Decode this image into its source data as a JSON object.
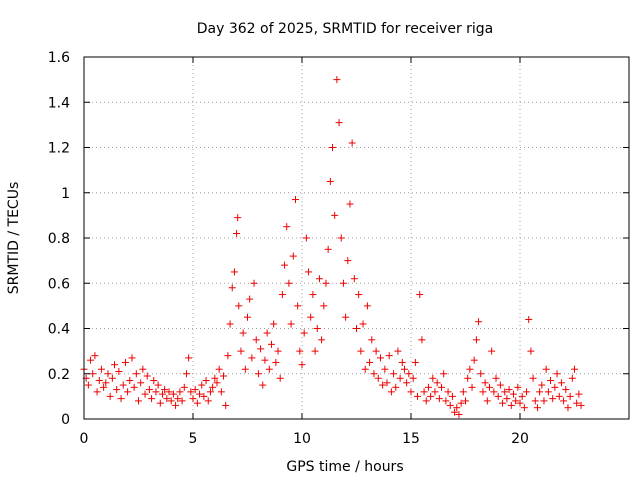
{
  "chart_data": {
    "type": "scatter",
    "title": "Day 362 of 2025, SRMTID for receiver riga",
    "xlabel": "GPS time / hours",
    "ylabel": "SRMTID / TECUs",
    "xlim": [
      0,
      25
    ],
    "ylim": [
      0,
      1.6
    ],
    "xticks": [
      0,
      5,
      10,
      15,
      20
    ],
    "xtick_labels": [
      "0",
      "5",
      "10",
      "15",
      "20"
    ],
    "yticks": [
      0,
      0.2,
      0.4,
      0.6,
      0.8,
      1.0,
      1.2,
      1.4,
      1.6
    ],
    "ytick_labels": [
      "0",
      "0.2",
      "0.4",
      "0.6",
      "0.8",
      "1",
      "1.2",
      "1.4",
      "1.6"
    ],
    "grid": true,
    "marker": "+",
    "color": "#ee0000",
    "series": [
      {
        "name": "riga",
        "points": [
          [
            0.0,
            0.22
          ],
          [
            0.1,
            0.18
          ],
          [
            0.2,
            0.15
          ],
          [
            0.3,
            0.26
          ],
          [
            0.4,
            0.2
          ],
          [
            0.5,
            0.28
          ],
          [
            0.6,
            0.12
          ],
          [
            0.7,
            0.17
          ],
          [
            0.8,
            0.22
          ],
          [
            0.9,
            0.14
          ],
          [
            1.0,
            0.16
          ],
          [
            1.1,
            0.2
          ],
          [
            1.2,
            0.1
          ],
          [
            1.3,
            0.18
          ],
          [
            1.4,
            0.24
          ],
          [
            1.5,
            0.13
          ],
          [
            1.6,
            0.21
          ],
          [
            1.7,
            0.09
          ],
          [
            1.8,
            0.15
          ],
          [
            1.9,
            0.25
          ],
          [
            2.0,
            0.12
          ],
          [
            2.1,
            0.17
          ],
          [
            2.2,
            0.27
          ],
          [
            2.3,
            0.14
          ],
          [
            2.4,
            0.2
          ],
          [
            2.5,
            0.08
          ],
          [
            2.6,
            0.16
          ],
          [
            2.7,
            0.22
          ],
          [
            2.8,
            0.11
          ],
          [
            2.9,
            0.19
          ],
          [
            3.0,
            0.13
          ],
          [
            3.1,
            0.09
          ],
          [
            3.2,
            0.17
          ],
          [
            3.3,
            0.12
          ],
          [
            3.4,
            0.15
          ],
          [
            3.5,
            0.07
          ],
          [
            3.6,
            0.11
          ],
          [
            3.7,
            0.13
          ],
          [
            3.8,
            0.09
          ],
          [
            3.9,
            0.12
          ],
          [
            4.0,
            0.08
          ],
          [
            4.1,
            0.11
          ],
          [
            4.2,
            0.06
          ],
          [
            4.3,
            0.09
          ],
          [
            4.4,
            0.12
          ],
          [
            4.5,
            0.08
          ],
          [
            4.6,
            0.14
          ],
          [
            4.7,
            0.2
          ],
          [
            4.8,
            0.27
          ],
          [
            4.9,
            0.12
          ],
          [
            5.0,
            0.09
          ],
          [
            5.1,
            0.13
          ],
          [
            5.2,
            0.07
          ],
          [
            5.3,
            0.11
          ],
          [
            5.4,
            0.15
          ],
          [
            5.5,
            0.1
          ],
          [
            5.6,
            0.17
          ],
          [
            5.7,
            0.08
          ],
          [
            5.8,
            0.12
          ],
          [
            5.9,
            0.14
          ],
          [
            6.0,
            0.18
          ],
          [
            6.1,
            0.16
          ],
          [
            6.2,
            0.22
          ],
          [
            6.3,
            0.12
          ],
          [
            6.4,
            0.19
          ],
          [
            6.5,
            0.06
          ],
          [
            6.6,
            0.28
          ],
          [
            6.7,
            0.42
          ],
          [
            6.8,
            0.58
          ],
          [
            6.9,
            0.65
          ],
          [
            7.0,
            0.82
          ],
          [
            7.05,
            0.89
          ],
          [
            7.1,
            0.5
          ],
          [
            7.2,
            0.3
          ],
          [
            7.3,
            0.38
          ],
          [
            7.4,
            0.22
          ],
          [
            7.5,
            0.45
          ],
          [
            7.6,
            0.53
          ],
          [
            7.7,
            0.27
          ],
          [
            7.8,
            0.6
          ],
          [
            7.9,
            0.35
          ],
          [
            8.0,
            0.2
          ],
          [
            8.1,
            0.31
          ],
          [
            8.2,
            0.15
          ],
          [
            8.3,
            0.26
          ],
          [
            8.4,
            0.38
          ],
          [
            8.5,
            0.22
          ],
          [
            8.6,
            0.33
          ],
          [
            8.7,
            0.42
          ],
          [
            8.8,
            0.25
          ],
          [
            8.9,
            0.3
          ],
          [
            9.0,
            0.18
          ],
          [
            9.1,
            0.55
          ],
          [
            9.2,
            0.68
          ],
          [
            9.3,
            0.85
          ],
          [
            9.4,
            0.6
          ],
          [
            9.5,
            0.42
          ],
          [
            9.6,
            0.72
          ],
          [
            9.7,
            0.97
          ],
          [
            9.8,
            0.5
          ],
          [
            9.9,
            0.3
          ],
          [
            10.0,
            0.24
          ],
          [
            10.1,
            0.38
          ],
          [
            10.2,
            0.8
          ],
          [
            10.3,
            0.65
          ],
          [
            10.4,
            0.45
          ],
          [
            10.5,
            0.55
          ],
          [
            10.6,
            0.3
          ],
          [
            10.7,
            0.4
          ],
          [
            10.8,
            0.62
          ],
          [
            10.9,
            0.35
          ],
          [
            11.0,
            0.5
          ],
          [
            11.1,
            0.6
          ],
          [
            11.2,
            0.75
          ],
          [
            11.3,
            1.05
          ],
          [
            11.4,
            1.2
          ],
          [
            11.5,
            0.9
          ],
          [
            11.6,
            1.5
          ],
          [
            11.7,
            1.31
          ],
          [
            11.8,
            0.8
          ],
          [
            11.9,
            0.6
          ],
          [
            12.0,
            0.45
          ],
          [
            12.1,
            0.7
          ],
          [
            12.2,
            0.95
          ],
          [
            12.3,
            1.22
          ],
          [
            12.4,
            0.62
          ],
          [
            12.5,
            0.4
          ],
          [
            12.6,
            0.55
          ],
          [
            12.7,
            0.3
          ],
          [
            12.8,
            0.42
          ],
          [
            12.9,
            0.22
          ],
          [
            13.0,
            0.5
          ],
          [
            13.1,
            0.25
          ],
          [
            13.2,
            0.35
          ],
          [
            13.3,
            0.2
          ],
          [
            13.4,
            0.3
          ],
          [
            13.5,
            0.18
          ],
          [
            13.6,
            0.27
          ],
          [
            13.7,
            0.15
          ],
          [
            13.8,
            0.22
          ],
          [
            13.9,
            0.16
          ],
          [
            14.0,
            0.28
          ],
          [
            14.1,
            0.12
          ],
          [
            14.2,
            0.2
          ],
          [
            14.3,
            0.14
          ],
          [
            14.4,
            0.3
          ],
          [
            14.5,
            0.18
          ],
          [
            14.6,
            0.25
          ],
          [
            14.7,
            0.22
          ],
          [
            14.8,
            0.16
          ],
          [
            14.9,
            0.2
          ],
          [
            15.0,
            0.12
          ],
          [
            15.1,
            0.18
          ],
          [
            15.2,
            0.25
          ],
          [
            15.3,
            0.1
          ],
          [
            15.4,
            0.55
          ],
          [
            15.5,
            0.35
          ],
          [
            15.6,
            0.12
          ],
          [
            15.7,
            0.08
          ],
          [
            15.8,
            0.14
          ],
          [
            15.9,
            0.1
          ],
          [
            16.0,
            0.18
          ],
          [
            16.1,
            0.12
          ],
          [
            16.2,
            0.16
          ],
          [
            16.3,
            0.09
          ],
          [
            16.4,
            0.14
          ],
          [
            16.5,
            0.2
          ],
          [
            16.6,
            0.08
          ],
          [
            16.7,
            0.12
          ],
          [
            16.8,
            0.06
          ],
          [
            16.9,
            0.1
          ],
          [
            17.0,
            0.03
          ],
          [
            17.1,
            0.05
          ],
          [
            17.2,
            0.02
          ],
          [
            17.3,
            0.07
          ],
          [
            17.4,
            0.12
          ],
          [
            17.5,
            0.08
          ],
          [
            17.6,
            0.18
          ],
          [
            17.7,
            0.22
          ],
          [
            17.8,
            0.14
          ],
          [
            17.9,
            0.26
          ],
          [
            18.0,
            0.35
          ],
          [
            18.1,
            0.43
          ],
          [
            18.2,
            0.2
          ],
          [
            18.3,
            0.12
          ],
          [
            18.4,
            0.16
          ],
          [
            18.5,
            0.08
          ],
          [
            18.6,
            0.14
          ],
          [
            18.7,
            0.3
          ],
          [
            18.8,
            0.12
          ],
          [
            18.9,
            0.18
          ],
          [
            19.0,
            0.1
          ],
          [
            19.1,
            0.15
          ],
          [
            19.2,
            0.07
          ],
          [
            19.3,
            0.12
          ],
          [
            19.4,
            0.09
          ],
          [
            19.5,
            0.13
          ],
          [
            19.6,
            0.06
          ],
          [
            19.7,
            0.11
          ],
          [
            19.8,
            0.08
          ],
          [
            19.9,
            0.14
          ],
          [
            20.0,
            0.07
          ],
          [
            20.1,
            0.1
          ],
          [
            20.2,
            0.05
          ],
          [
            20.3,
            0.12
          ],
          [
            20.4,
            0.44
          ],
          [
            20.5,
            0.3
          ],
          [
            20.6,
            0.18
          ],
          [
            20.7,
            0.08
          ],
          [
            20.8,
            0.05
          ],
          [
            20.9,
            0.12
          ],
          [
            21.0,
            0.15
          ],
          [
            21.1,
            0.08
          ],
          [
            21.2,
            0.22
          ],
          [
            21.3,
            0.12
          ],
          [
            21.4,
            0.17
          ],
          [
            21.5,
            0.09
          ],
          [
            21.6,
            0.14
          ],
          [
            21.7,
            0.2
          ],
          [
            21.8,
            0.1
          ],
          [
            21.9,
            0.16
          ],
          [
            22.0,
            0.08
          ],
          [
            22.1,
            0.13
          ],
          [
            22.2,
            0.05
          ],
          [
            22.3,
            0.1
          ],
          [
            22.4,
            0.18
          ],
          [
            22.5,
            0.22
          ],
          [
            22.6,
            0.07
          ],
          [
            22.7,
            0.11
          ],
          [
            22.8,
            0.06
          ]
        ]
      }
    ]
  }
}
